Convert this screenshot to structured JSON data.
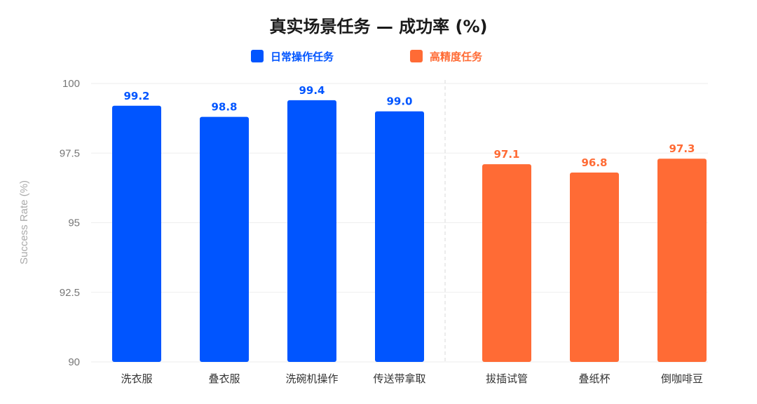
{
  "chart_data": {
    "type": "bar",
    "title": "真实场景任务 — 成功率 (%)",
    "xlabel": "",
    "ylabel": "Success Rate (%)",
    "ylim": [
      90,
      100
    ],
    "yticks": [
      "90",
      "92.5",
      "95",
      "97.5",
      "100"
    ],
    "grid": true,
    "legend_position": "top-center",
    "groups": [
      {
        "name": "日常操作任务",
        "color": "#0055FF",
        "categories": [
          "洗衣服",
          "叠衣服",
          "洗碗机操作",
          "传送带拿取"
        ],
        "values": [
          99.2,
          98.8,
          99.4,
          99.0
        ],
        "labels": [
          "99.2",
          "98.8",
          "99.4",
          "99.0"
        ]
      },
      {
        "name": "高精度任务",
        "color": "#FF6B35",
        "categories": [
          "拔插试管",
          "叠纸杯",
          "倒咖啡豆"
        ],
        "values": [
          97.1,
          96.8,
          97.3
        ],
        "labels": [
          "97.1",
          "96.8",
          "97.3"
        ]
      }
    ]
  }
}
